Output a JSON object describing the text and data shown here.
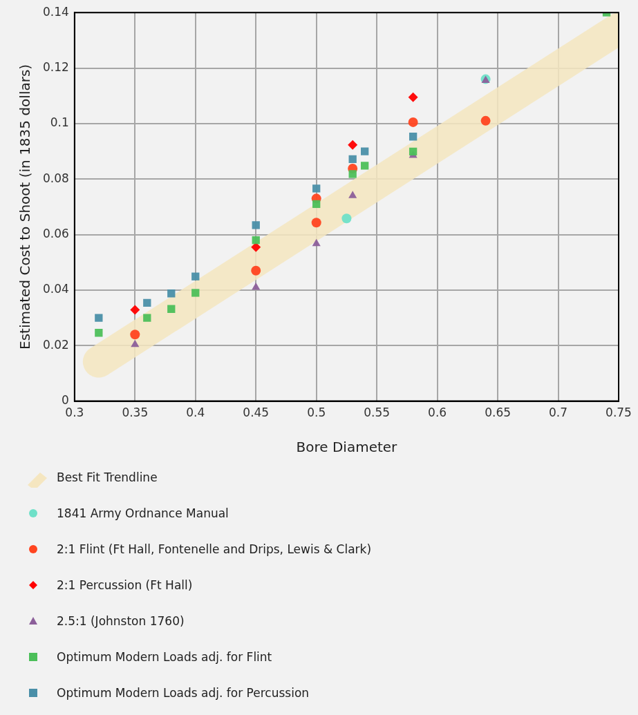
{
  "chart_data": {
    "type": "scatter",
    "xlabel": "Bore Diameter",
    "ylabel": "Estimated Cost to Shoot (in 1835 dollars)",
    "xlim": [
      0.3,
      0.75
    ],
    "xticks": [
      0.3,
      0.35,
      0.4,
      0.45,
      0.5,
      0.55,
      0.6,
      0.65,
      0.7,
      0.75
    ],
    "ylim": [
      0,
      0.14
    ],
    "yticks": [
      0,
      0.02,
      0.04,
      0.06,
      0.08,
      0.1,
      0.12,
      0.14
    ],
    "grid": true,
    "legend": "bottom",
    "series": [
      {
        "name": "Best Fit Trendline",
        "type": "line",
        "color": "#f5e6c0",
        "x": [
          0.32,
          0.75
        ],
        "values": [
          0.0142,
          0.1342
        ]
      },
      {
        "name": "1841 Army Ordnance Manual",
        "marker": "circle",
        "color": "#6fe0c8",
        "x": [
          0.525,
          0.64
        ],
        "values": [
          0.0658,
          0.116
        ]
      },
      {
        "name": "2:1 Flint (Ft Hall, Fontenelle and Drips, Lewis & Clark)",
        "marker": "circle",
        "color": "#ff4520",
        "x": [
          0.35,
          0.45,
          0.5,
          0.5,
          0.53,
          0.58,
          0.64
        ],
        "values": [
          0.024,
          0.047,
          0.0643,
          0.073,
          0.0838,
          0.1005,
          0.101
        ]
      },
      {
        "name": "2:1 Percussion (Ft Hall)",
        "marker": "diamond",
        "color": "#ff0000",
        "x": [
          0.35,
          0.45,
          0.53,
          0.58
        ],
        "values": [
          0.0329,
          0.0555,
          0.0923,
          0.1095
        ]
      },
      {
        "name": "2.5:1 (Johnston 1760)",
        "marker": "triangle",
        "color": "#8c5f9a",
        "x": [
          0.35,
          0.45,
          0.5,
          0.53,
          0.58,
          0.64
        ],
        "values": [
          0.0204,
          0.041,
          0.0567,
          0.074,
          0.0885,
          0.1155
        ]
      },
      {
        "name": "Optimum Modern Loads adj. for Flint",
        "marker": "square",
        "color": "#4cbf5a",
        "x": [
          0.32,
          0.36,
          0.38,
          0.4,
          0.45,
          0.5,
          0.53,
          0.54,
          0.58,
          0.74
        ],
        "values": [
          0.0246,
          0.03,
          0.0332,
          0.039,
          0.058,
          0.071,
          0.0818,
          0.0848,
          0.0899,
          0.14
        ]
      },
      {
        "name": "Optimum Modern Loads adj. for Percussion",
        "marker": "square",
        "color": "#4a8fa8",
        "x": [
          0.32,
          0.36,
          0.38,
          0.4,
          0.45,
          0.5,
          0.53,
          0.54,
          0.58
        ],
        "values": [
          0.03,
          0.0354,
          0.0388,
          0.0449,
          0.0634,
          0.0766,
          0.0872,
          0.09,
          0.0953
        ]
      }
    ]
  }
}
